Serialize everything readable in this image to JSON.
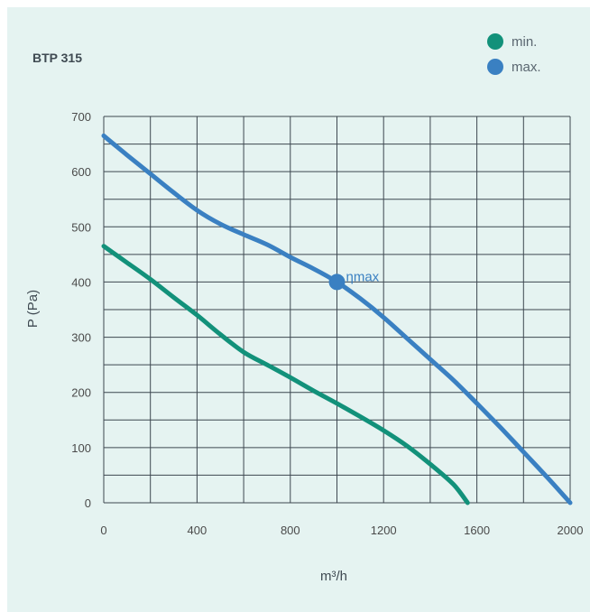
{
  "chart_data": {
    "type": "line",
    "title": "BTP 315",
    "xlabel": "m³/h",
    "ylabel": "P (Pa)",
    "xlim": [
      0,
      2000
    ],
    "ylim": [
      0,
      700
    ],
    "x_ticks": [
      0,
      400,
      800,
      1200,
      1600,
      2000
    ],
    "y_ticks": [
      0,
      100,
      200,
      300,
      400,
      500,
      600,
      700
    ],
    "grid": true,
    "legend_position": "top-right",
    "series": [
      {
        "name": "min.",
        "color": "#12917a",
        "points": [
          [
            0,
            465
          ],
          [
            100,
            435
          ],
          [
            200,
            405
          ],
          [
            300,
            372
          ],
          [
            400,
            340
          ],
          [
            500,
            305
          ],
          [
            600,
            273
          ],
          [
            700,
            250
          ],
          [
            800,
            227
          ],
          [
            900,
            203
          ],
          [
            1000,
            180
          ],
          [
            1100,
            156
          ],
          [
            1200,
            131
          ],
          [
            1300,
            103
          ],
          [
            1400,
            70
          ],
          [
            1500,
            33
          ],
          [
            1560,
            0
          ]
        ]
      },
      {
        "name": "max.",
        "color": "#3a80c2",
        "points": [
          [
            0,
            665
          ],
          [
            100,
            630
          ],
          [
            200,
            596
          ],
          [
            300,
            562
          ],
          [
            400,
            530
          ],
          [
            500,
            505
          ],
          [
            600,
            486
          ],
          [
            700,
            468
          ],
          [
            800,
            445
          ],
          [
            900,
            424
          ],
          [
            1000,
            400
          ],
          [
            1100,
            370
          ],
          [
            1200,
            336
          ],
          [
            1300,
            298
          ],
          [
            1400,
            260
          ],
          [
            1500,
            222
          ],
          [
            1600,
            180
          ],
          [
            1700,
            137
          ],
          [
            1800,
            92
          ],
          [
            1900,
            47
          ],
          [
            2000,
            0
          ]
        ]
      }
    ],
    "annotations": [
      {
        "text": "ηmax",
        "x": 1000,
        "y": 400,
        "series": "max.",
        "color": "#3a80c2"
      }
    ]
  }
}
